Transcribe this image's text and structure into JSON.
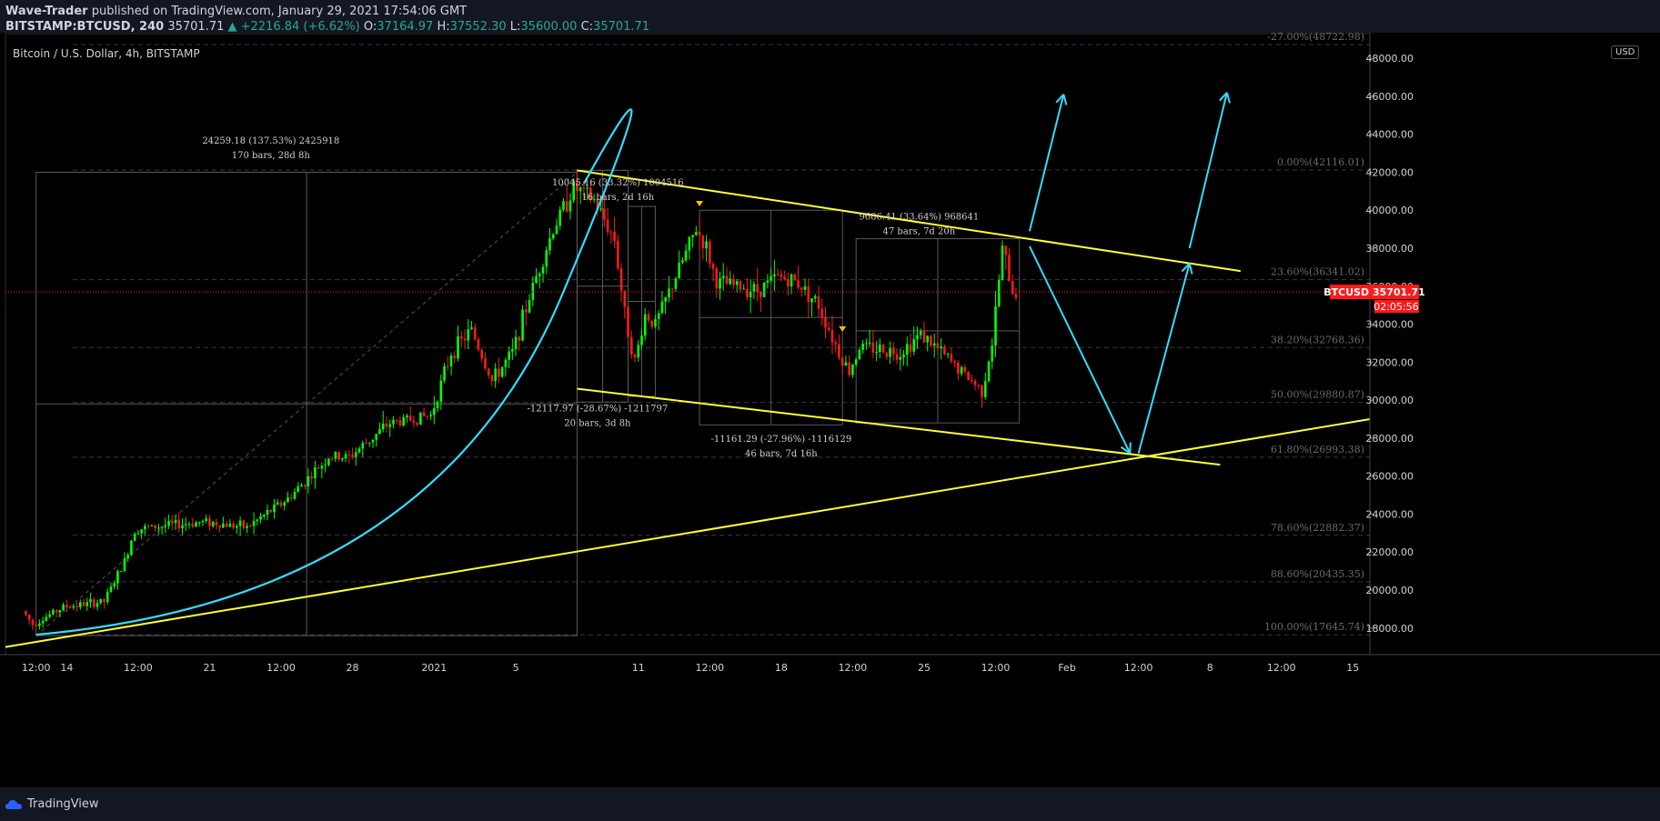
{
  "header": {
    "author": "Wave-Trader",
    "published": " published on TradingView.com, January 29, 2021 17:54:06 GMT",
    "symbol": "BITSTAMP:BTCUSD, 240",
    "last": "35701.71",
    "change": "▲ +2216.84 (+6.62%)",
    "o_label": "O:",
    "o_val": "37164.97",
    "h_label": "H:",
    "h_val": "37552.30",
    "l_label": "L:",
    "l_val": "35600.00",
    "c_label": "C:",
    "c_val": "35701.71"
  },
  "chart_title": "Bitcoin / U.S. Dollar, 4h, BITSTAMP",
  "currency_button": "USD",
  "footer": {
    "brand": "TradingView"
  },
  "colors": {
    "bull": "#00ff00",
    "bear": "#ff1a1a",
    "trend": "#ffff33",
    "arrow": "#33ddff",
    "price_tag": "#ff1a1a",
    "grid": "#444444"
  },
  "chart_data": {
    "type": "candlestick",
    "ylim": [
      16600,
      49300
    ],
    "y_ticks": [
      18000,
      20000,
      22000,
      24000,
      26000,
      28000,
      30000,
      32000,
      34000,
      36000,
      38000,
      40000,
      42000,
      44000,
      46000,
      48000
    ],
    "y_tick_labels": [
      "18000.00",
      "20000.00",
      "22000.00",
      "24000.00",
      "26000.00",
      "28000.00",
      "30000.00",
      "32000.00",
      "34000.00",
      "36000.00",
      "38000.00",
      "40000.00",
      "42000.00",
      "44000.00",
      "46000.00",
      "48000.00"
    ],
    "x_tick_labels": [
      "12:00",
      "14",
      "12:00",
      "21",
      "12:00",
      "28",
      "2021",
      "5",
      "11",
      "12:00",
      "18",
      "12:00",
      "25",
      "12:00",
      "Feb",
      "12:00",
      "8",
      "12:00",
      "15"
    ],
    "fib_levels": [
      {
        "label": "-27.00%(48722.98)",
        "value": 48722.98
      },
      {
        "label": "0.00%(42116.01)",
        "value": 42116.01
      },
      {
        "label": "23.60%(36341.02)",
        "value": 36341.02
      },
      {
        "label": "38.20%(32768.36)",
        "value": 32768.36
      },
      {
        "label": "50.00%(29880.87)",
        "value": 29880.87
      },
      {
        "label": "61.80%(26993.38)",
        "value": 26993.38
      },
      {
        "label": "78.60%(22882.37)",
        "value": 22882.37
      },
      {
        "label": "88.60%(20435.35)",
        "value": 20435.35
      },
      {
        "label": "100.00%(17645.74)",
        "value": 17645.74
      }
    ],
    "last_price": {
      "symbol": "BTCUSD",
      "value": "35701.71",
      "countdown": "02:05:56",
      "price": 35701.71
    },
    "measurements": [
      {
        "line1": "24259.18 (137.53%) 2425918",
        "line2": "170 bars, 28d 8h"
      },
      {
        "line1": "10045.16 (33.32%) 1004516",
        "line2": "16 bars, 2d 16h"
      },
      {
        "line1": "-12117.97 (-28.67%) -1211797",
        "line2": "20 bars, 3d 8h"
      },
      {
        "line1": "-11161.29 (-27.96%) -1116129",
        "line2": "46 bars, 7d 16h"
      },
      {
        "line1": "9686.41 (33.64%) 968641",
        "line2": "47 bars, 7d 20h"
      }
    ],
    "path_anchors": [
      {
        "date": "2020-12-12 00:00",
        "price": 18900
      },
      {
        "date": "2020-12-12 12:00",
        "price": 18200
      },
      {
        "date": "2020-12-14 00:00",
        "price": 19100
      },
      {
        "date": "2020-12-16 00:00",
        "price": 19400
      },
      {
        "date": "2020-12-17 00:00",
        "price": 21500
      },
      {
        "date": "2020-12-17 12:00",
        "price": 23200
      },
      {
        "date": "2020-12-20 00:00",
        "price": 23500
      },
      {
        "date": "2020-12-21 00:00",
        "price": 23600
      },
      {
        "date": "2020-12-23 00:00",
        "price": 23300
      },
      {
        "date": "2020-12-25 00:00",
        "price": 24800
      },
      {
        "date": "2020-12-27 00:00",
        "price": 27000
      },
      {
        "date": "2020-12-28 00:00",
        "price": 27000
      },
      {
        "date": "2020-12-30 00:00",
        "price": 28800
      },
      {
        "date": "2021-01-01 00:00",
        "price": 29200
      },
      {
        "date": "2021-01-02 00:00",
        "price": 32500
      },
      {
        "date": "2021-01-03 00:00",
        "price": 33700
      },
      {
        "date": "2021-01-04 00:00",
        "price": 31000
      },
      {
        "date": "2021-01-05 00:00",
        "price": 32500
      },
      {
        "date": "2021-01-06 00:00",
        "price": 36000
      },
      {
        "date": "2021-01-07 00:00",
        "price": 39000
      },
      {
        "date": "2021-01-08 00:00",
        "price": 41200
      },
      {
        "date": "2021-01-09 00:00",
        "price": 40500
      },
      {
        "date": "2021-01-10 00:00",
        "price": 38500
      },
      {
        "date": "2021-01-10 12:00",
        "price": 34500
      },
      {
        "date": "2021-01-11 00:00",
        "price": 32000
      },
      {
        "date": "2021-01-11 12:00",
        "price": 34500
      },
      {
        "date": "2021-01-12 00:00",
        "price": 34000
      },
      {
        "date": "2021-01-13 00:00",
        "price": 36500
      },
      {
        "date": "2021-01-14 00:00",
        "price": 39000
      },
      {
        "date": "2021-01-14 12:00",
        "price": 38000
      },
      {
        "date": "2021-01-15 00:00",
        "price": 36200
      },
      {
        "date": "2021-01-16 00:00",
        "price": 36000
      },
      {
        "date": "2021-01-17 00:00",
        "price": 35800
      },
      {
        "date": "2021-01-18 00:00",
        "price": 36500
      },
      {
        "date": "2021-01-19 00:00",
        "price": 36200
      },
      {
        "date": "2021-01-20 00:00",
        "price": 35000
      },
      {
        "date": "2021-01-21 00:00",
        "price": 32500
      },
      {
        "date": "2021-01-21 12:00",
        "price": 31500
      },
      {
        "date": "2021-01-22 00:00",
        "price": 32800
      },
      {
        "date": "2021-01-23 00:00",
        "price": 32700
      },
      {
        "date": "2021-01-24 00:00",
        "price": 32500
      },
      {
        "date": "2021-01-25 00:00",
        "price": 33500
      },
      {
        "date": "2021-01-26 00:00",
        "price": 32500
      },
      {
        "date": "2021-01-27 00:00",
        "price": 31500
      },
      {
        "date": "2021-01-28 00:00",
        "price": 30500
      },
      {
        "date": "2021-01-28 12:00",
        "price": 33000
      },
      {
        "date": "2021-01-29 00:00",
        "price": 38000
      },
      {
        "date": "2021-01-29 12:00",
        "price": 35700
      }
    ]
  }
}
